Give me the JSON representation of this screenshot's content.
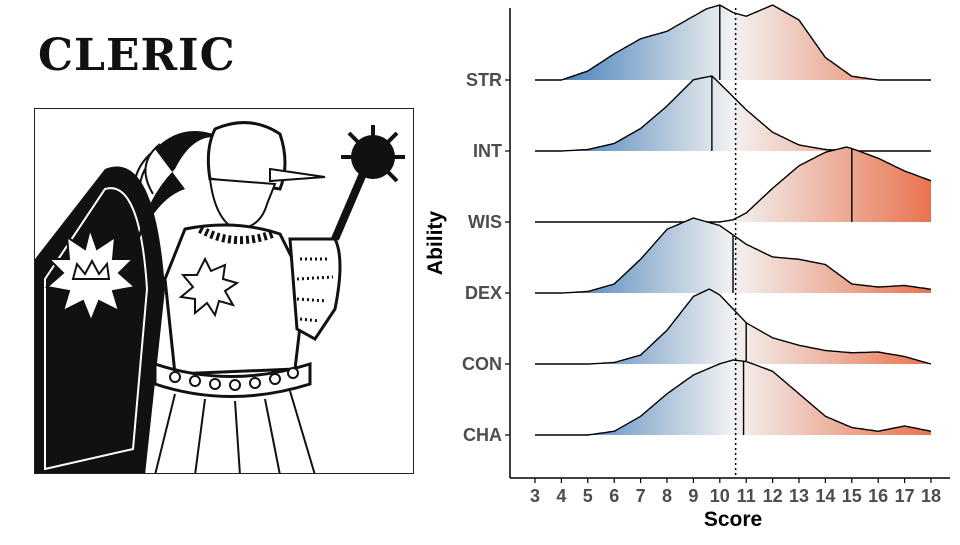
{
  "panel_title": "CLERIC",
  "illustration": {
    "kind": "black-and-white line drawing of a cleric with shield and flail"
  },
  "chart_data": {
    "type": "ridgeline",
    "xlabel": "Score",
    "ylabel": "Ability",
    "xlim": [
      3,
      18
    ],
    "x_ticks": [
      3,
      4,
      5,
      6,
      7,
      8,
      9,
      10,
      11,
      12,
      13,
      14,
      15,
      16,
      17,
      18
    ],
    "overall_mean_line": 10.6,
    "fill_gradient": {
      "low": "#2f6fb0",
      "mid": "#f2f2f2",
      "high": "#e8734e"
    },
    "grid": false,
    "legend": "none",
    "ridges": [
      {
        "name": "STR",
        "x": [
          3,
          4,
          5,
          6,
          7,
          8,
          9,
          9.5,
          10,
          10.5,
          11,
          12,
          13,
          14,
          15,
          16,
          17,
          18
        ],
        "density": [
          0.0,
          0.0,
          0.12,
          0.35,
          0.55,
          0.65,
          0.85,
          0.95,
          1.0,
          0.9,
          0.85,
          1.0,
          0.8,
          0.3,
          0.05,
          0.0,
          0.0,
          0.0
        ],
        "median": 10.0
      },
      {
        "name": "INT",
        "x": [
          3,
          4,
          5,
          6,
          7,
          8,
          9,
          9.7,
          10,
          11,
          12,
          13,
          14,
          15,
          16,
          17,
          18
        ],
        "density": [
          0.0,
          0.0,
          0.02,
          0.1,
          0.3,
          0.6,
          0.95,
          1.0,
          0.9,
          0.55,
          0.25,
          0.08,
          0.02,
          0.0,
          0.0,
          0.0,
          0.0
        ],
        "median": 9.7
      },
      {
        "name": "WIS",
        "x": [
          3,
          10,
          10.5,
          11,
          12,
          13,
          14,
          14.8,
          15,
          16,
          17,
          18
        ],
        "density": [
          0.0,
          0.0,
          0.03,
          0.12,
          0.45,
          0.75,
          0.93,
          1.0,
          0.98,
          0.85,
          0.68,
          0.55
        ],
        "median": 15.0
      },
      {
        "name": "DEX",
        "x": [
          3,
          4,
          5,
          6,
          7,
          8,
          9,
          10,
          11,
          12,
          13,
          14,
          15,
          16,
          17,
          18
        ],
        "density": [
          0.0,
          0.0,
          0.02,
          0.12,
          0.45,
          0.85,
          1.0,
          0.9,
          0.65,
          0.48,
          0.45,
          0.38,
          0.12,
          0.08,
          0.1,
          0.05
        ],
        "median": 10.5
      },
      {
        "name": "CON",
        "x": [
          3,
          4,
          5,
          6,
          7,
          8,
          9,
          9.6,
          10,
          11,
          12,
          13,
          14,
          15,
          16,
          17,
          18
        ],
        "density": [
          0.0,
          0.0,
          0.0,
          0.02,
          0.12,
          0.45,
          0.9,
          1.0,
          0.92,
          0.55,
          0.35,
          0.25,
          0.18,
          0.15,
          0.16,
          0.1,
          0.0
        ],
        "median": 11.0
      },
      {
        "name": "CHA",
        "x": [
          3,
          4,
          5,
          6,
          7,
          8,
          9,
          10,
          10.5,
          11,
          12,
          13,
          14,
          15,
          16,
          17,
          18
        ],
        "density": [
          0.0,
          0.0,
          0.0,
          0.05,
          0.25,
          0.55,
          0.8,
          0.95,
          1.0,
          0.98,
          0.85,
          0.55,
          0.25,
          0.1,
          0.05,
          0.12,
          0.05
        ],
        "median": 10.9
      }
    ]
  }
}
